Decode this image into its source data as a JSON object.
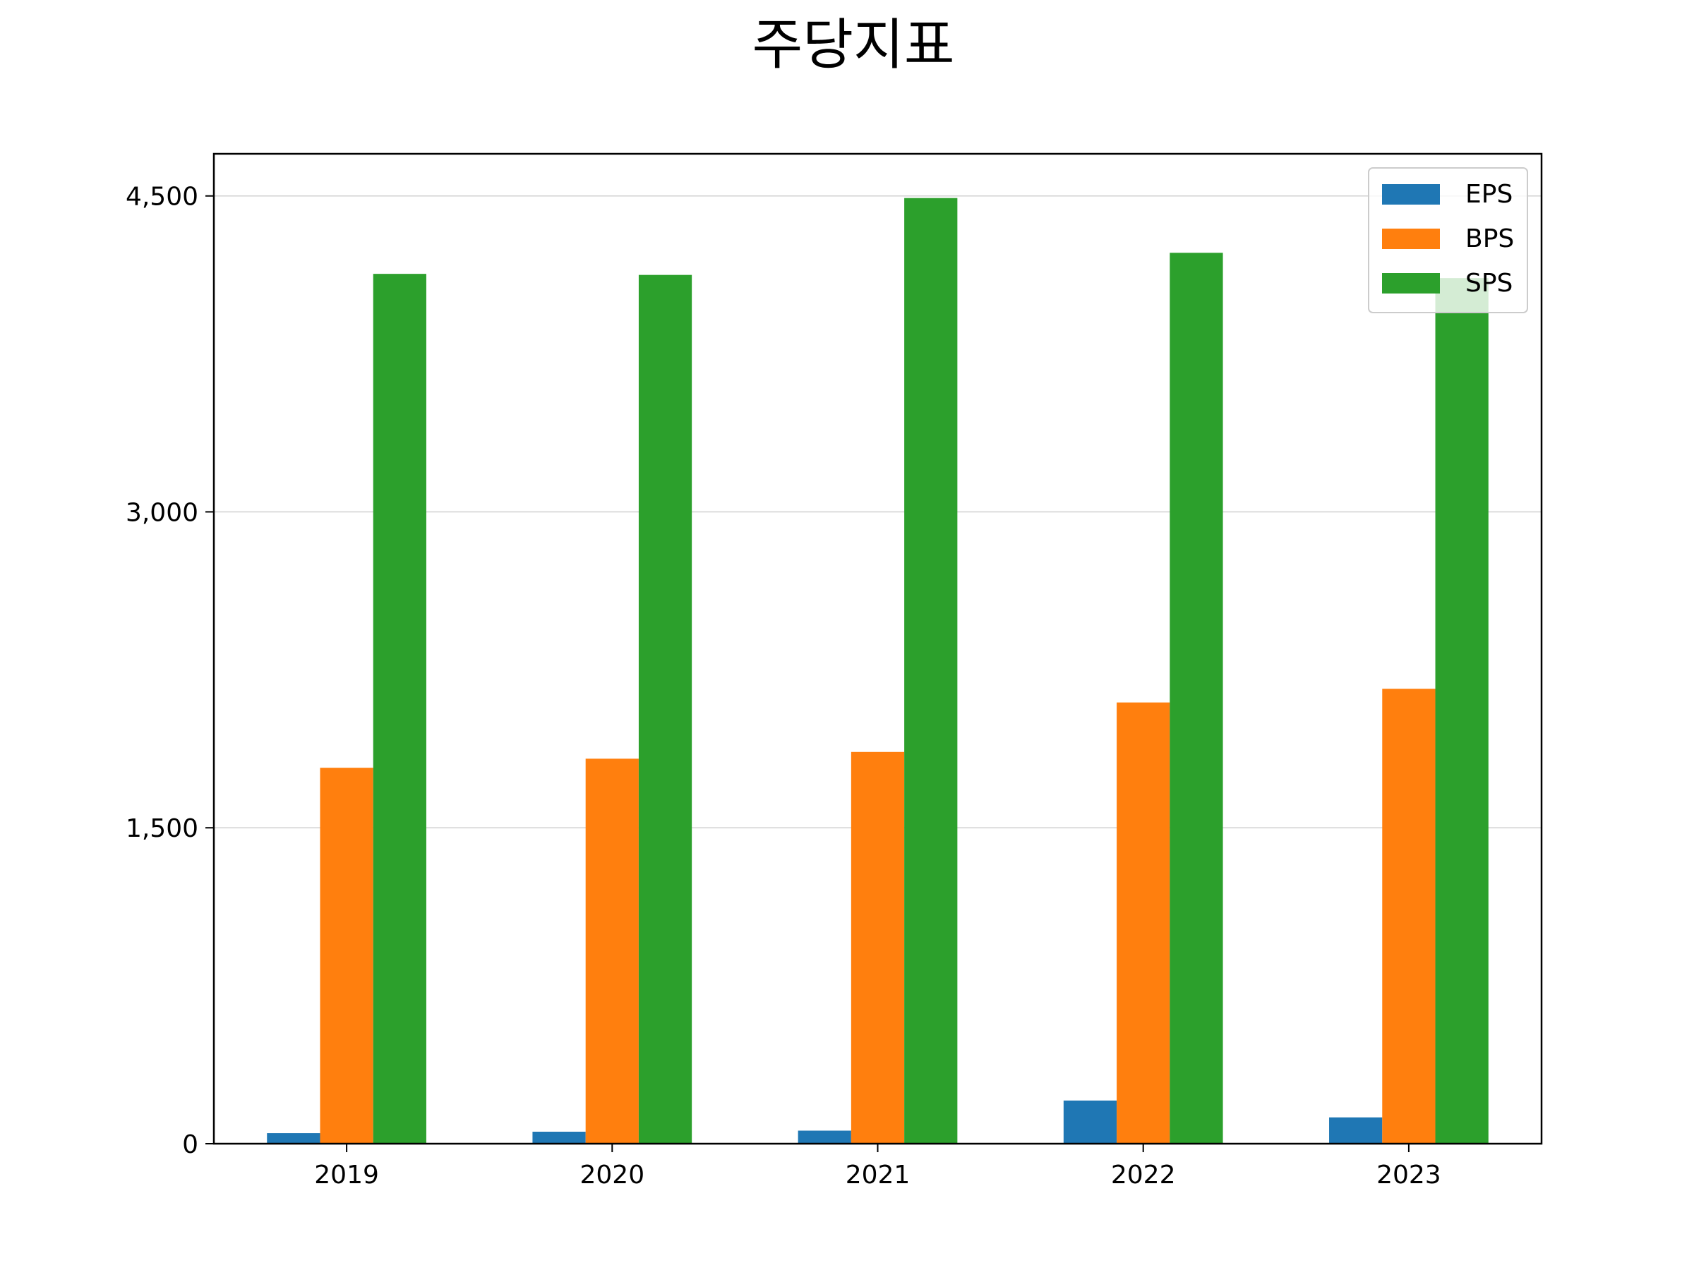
{
  "chart_data": {
    "type": "bar",
    "title": "주당지표",
    "xlabel": "",
    "ylabel": "",
    "categories": [
      "2019",
      "2020",
      "2021",
      "2022",
      "2023"
    ],
    "series": [
      {
        "name": "EPS",
        "color": "#1f77b4",
        "values": [
          50,
          57,
          62,
          205,
          125
        ]
      },
      {
        "name": "BPS",
        "color": "#ff7f0e",
        "values": [
          1785,
          1828,
          1860,
          2095,
          2160
        ]
      },
      {
        "name": "SPS",
        "color": "#2ca02c",
        "values": [
          4130,
          4125,
          4490,
          4230,
          4110
        ]
      }
    ],
    "ylim": [
      0,
      4700
    ],
    "yticks": [
      0,
      1500,
      3000,
      4500
    ],
    "ytick_labels": [
      "0",
      "1,500",
      "3,000",
      "4,500"
    ],
    "grid": "horizontal",
    "legend": "top-right"
  }
}
